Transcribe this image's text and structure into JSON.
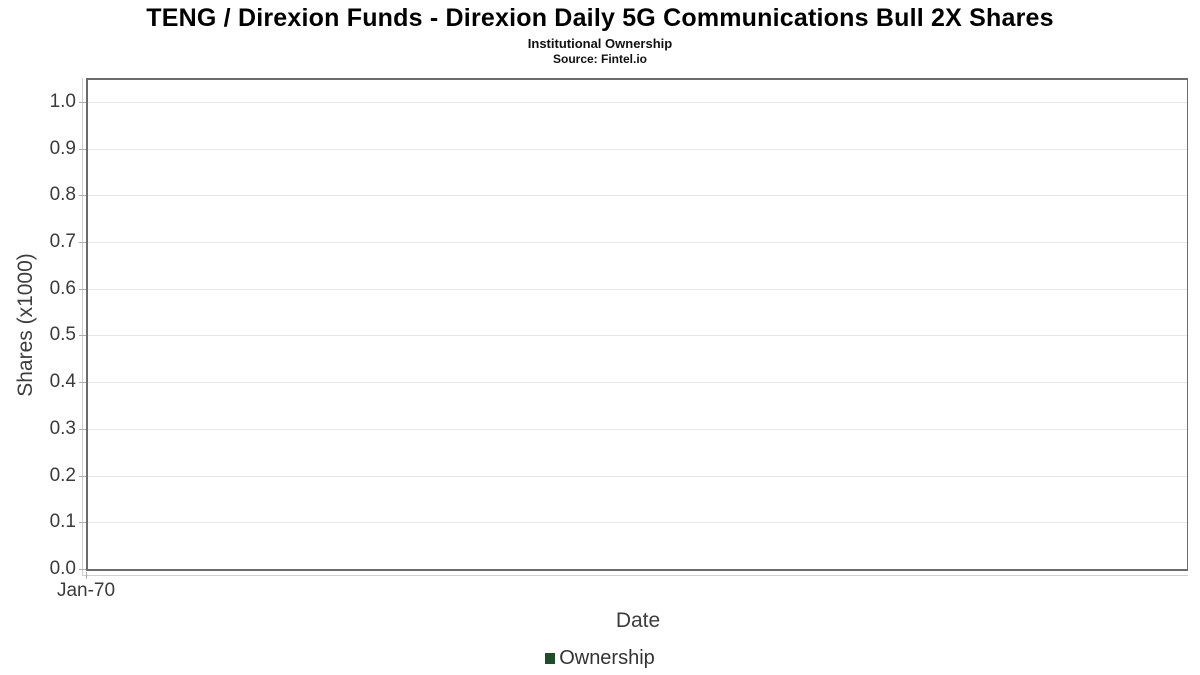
{
  "header": {
    "title": "TENG / Direxion Funds - Direxion Daily 5G Communications Bull 2X Shares",
    "subtitle": "Institutional Ownership",
    "source": "Source: Fintel.io"
  },
  "chart_data": {
    "type": "line",
    "title": "TENG / Direxion Funds - Direxion Daily 5G Communications Bull 2X Shares",
    "subtitle": "Institutional Ownership",
    "source": "Source: Fintel.io",
    "xlabel": "Date",
    "ylabel": "Shares (x1000)",
    "x": [],
    "series": [
      {
        "name": "Ownership",
        "color": "#1d4e28",
        "values": []
      }
    ],
    "xticks": [
      "Jan-70"
    ],
    "yticks": [
      "0.0",
      "0.1",
      "0.2",
      "0.3",
      "0.4",
      "0.5",
      "0.6",
      "0.7",
      "0.8",
      "0.9",
      "1.0"
    ],
    "ylim": [
      0,
      1.047
    ],
    "grid": "horizontal",
    "legend_position": "bottom-center",
    "colors": {
      "plot_border": "#6b6b6b",
      "gridline": "#e7e7e7",
      "axis_line": "#cfcfcf",
      "tick_mark": "#b0b0b0",
      "tick_label": "#3b3b3b",
      "axis_label": "#3d3d3d",
      "legend_text": "#333333"
    }
  }
}
